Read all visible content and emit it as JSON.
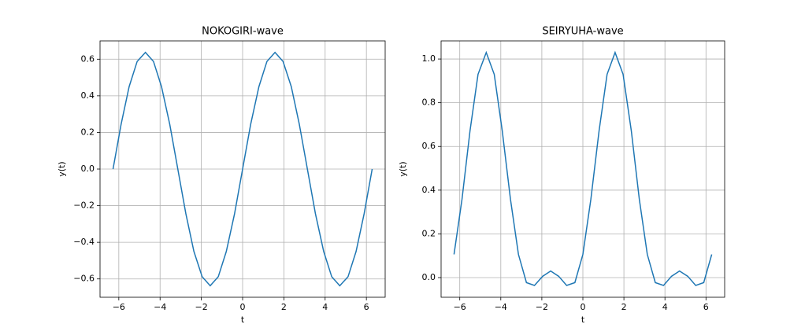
{
  "chart_data": [
    {
      "type": "line",
      "title": "NOKOGIRI-wave",
      "x_label": "t",
      "y_label": "y(t)",
      "grid": true,
      "x": [
        -6.28,
        -5.89,
        -5.5,
        -5.11,
        -4.71,
        -4.32,
        -3.93,
        -3.53,
        -3.14,
        -2.75,
        -2.36,
        -1.96,
        -1.57,
        -1.18,
        -0.79,
        -0.39,
        0,
        0.39,
        0.79,
        1.18,
        1.57,
        1.96,
        2.36,
        2.75,
        3.14,
        3.53,
        3.93,
        4.32,
        4.71,
        5.11,
        5.5,
        5.89,
        6.28
      ],
      "series": [
        {
          "name": "y(t)",
          "color": "#1f77b4",
          "values": [
            0,
            0.244,
            0.45,
            0.588,
            0.637,
            0.588,
            0.45,
            0.244,
            0,
            -0.244,
            -0.45,
            -0.588,
            -0.637,
            -0.588,
            -0.45,
            -0.244,
            0,
            0.244,
            0.45,
            0.588,
            0.637,
            0.588,
            0.45,
            0.244,
            0,
            -0.244,
            -0.45,
            -0.588,
            -0.637,
            -0.588,
            -0.45,
            -0.244,
            0
          ]
        }
      ],
      "xlim": [
        -6.91,
        6.91
      ],
      "ylim": [
        -0.7,
        0.7
      ],
      "xticks": [
        {
          "value": -6,
          "label": "−6"
        },
        {
          "value": -4,
          "label": "−4"
        },
        {
          "value": -2,
          "label": "−2"
        },
        0,
        2,
        4,
        6
      ],
      "yticks": [
        {
          "value": -0.6,
          "label": "−0.6"
        },
        {
          "value": -0.4,
          "label": "−0.4"
        },
        {
          "value": -0.2,
          "label": "−0.2"
        },
        {
          "value": 0,
          "label": "0.0"
        },
        0.2,
        0.4,
        0.6
      ]
    },
    {
      "type": "line",
      "title": "SEIRYUHA-wave",
      "x_label": "t",
      "y_label": "y(t)",
      "grid": true,
      "x": [
        -6.28,
        -5.89,
        -5.5,
        -5.11,
        -4.71,
        -4.32,
        -3.93,
        -3.53,
        -3.14,
        -2.75,
        -2.36,
        -1.96,
        -1.57,
        -1.18,
        -0.79,
        -0.39,
        0,
        0.39,
        0.79,
        1.18,
        1.57,
        1.96,
        2.36,
        2.75,
        3.14,
        3.53,
        3.93,
        4.32,
        4.71,
        5.11,
        5.5,
        5.89,
        6.28
      ],
      "series": [
        {
          "name": "y(t)",
          "color": "#1f77b4",
          "values": [
            0.106,
            0.359,
            0.672,
            0.93,
            1.03,
            0.93,
            0.672,
            0.359,
            0.106,
            -0.023,
            -0.036,
            0.006,
            0.03,
            0.006,
            -0.036,
            -0.023,
            0.106,
            0.359,
            0.672,
            0.93,
            1.03,
            0.93,
            0.672,
            0.359,
            0.106,
            -0.023,
            -0.036,
            0.006,
            0.03,
            0.006,
            -0.036,
            -0.023,
            0.106
          ]
        }
      ],
      "xlim": [
        -6.91,
        6.91
      ],
      "ylim": [
        -0.09,
        1.083
      ],
      "xticks": [
        {
          "value": -6,
          "label": "−6"
        },
        {
          "value": -4,
          "label": "−4"
        },
        {
          "value": -2,
          "label": "−2"
        },
        0,
        2,
        4,
        6
      ],
      "yticks": [
        {
          "value": 0,
          "label": "0.0"
        },
        0.2,
        0.4,
        0.6,
        0.8,
        {
          "value": 1,
          "label": "1.0"
        }
      ]
    }
  ]
}
